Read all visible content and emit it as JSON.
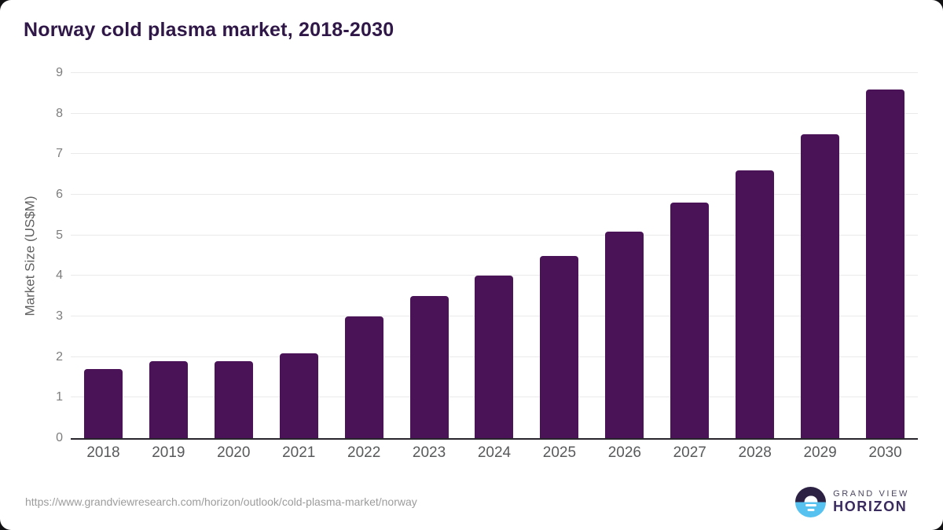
{
  "header": {
    "title": "Norway cold plasma market, 2018-2030"
  },
  "chart_data": {
    "type": "bar",
    "title": "Norway cold plasma market, 2018-2030",
    "categories": [
      "2018",
      "2019",
      "2020",
      "2021",
      "2022",
      "2023",
      "2024",
      "2025",
      "2026",
      "2027",
      "2028",
      "2029",
      "2030"
    ],
    "values": [
      1.7,
      1.9,
      1.9,
      2.1,
      3.0,
      3.5,
      4.0,
      4.5,
      5.1,
      5.8,
      6.6,
      7.5,
      8.6
    ],
    "xlabel": "",
    "ylabel": "Market Size (US$M)",
    "ylim": [
      0,
      9
    ],
    "yticks": [
      0,
      1,
      2,
      3,
      4,
      5,
      6,
      7,
      8,
      9
    ],
    "grid": true,
    "legend": false,
    "bar_color": "#4a1357"
  },
  "footer": {
    "source_url": "https://www.grandviewresearch.com/horizon/outlook/cold-plasma-market/norway",
    "logo": {
      "line1": "GRAND VIEW",
      "line2": "HORIZON"
    }
  },
  "colors": {
    "title_text": "#2f1747",
    "bar": "#4a1357",
    "gridline": "#eaeaea",
    "axis_line": "#28252c",
    "ytick_text": "#7d7d7d",
    "xtick_text": "#58595b",
    "url_text": "#9c9c9c",
    "logo_dark": "#2c2143",
    "logo_blue": "#57c2f0"
  }
}
